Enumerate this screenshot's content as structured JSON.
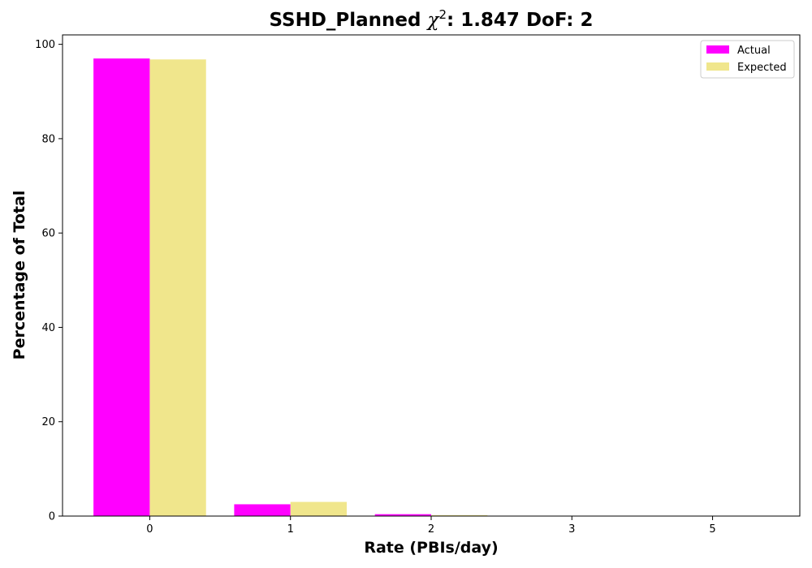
{
  "chart_data": {
    "type": "bar",
    "title_prefix": "SSHD_Planned ",
    "title_chi": "χ",
    "title_sup": "2",
    "title_suffix": ": 1.847 DoF: 2",
    "xlabel": "Rate (PBIs/day)",
    "ylabel": "Percentage of Total",
    "categories": [
      "0",
      "1",
      "2",
      "3",
      "5"
    ],
    "series": [
      {
        "name": "Actual",
        "color": "#ff00ff",
        "values": [
          97.0,
          2.5,
          0.4,
          0.05,
          0.05
        ]
      },
      {
        "name": "Expected",
        "color": "#f0e68c",
        "values": [
          96.8,
          3.0,
          0.2,
          0.0,
          0.0
        ]
      }
    ],
    "ylim": [
      0,
      102
    ],
    "yticks": [
      0,
      20,
      40,
      60,
      80,
      100
    ],
    "legend_position": "top-right",
    "grid": false
  }
}
